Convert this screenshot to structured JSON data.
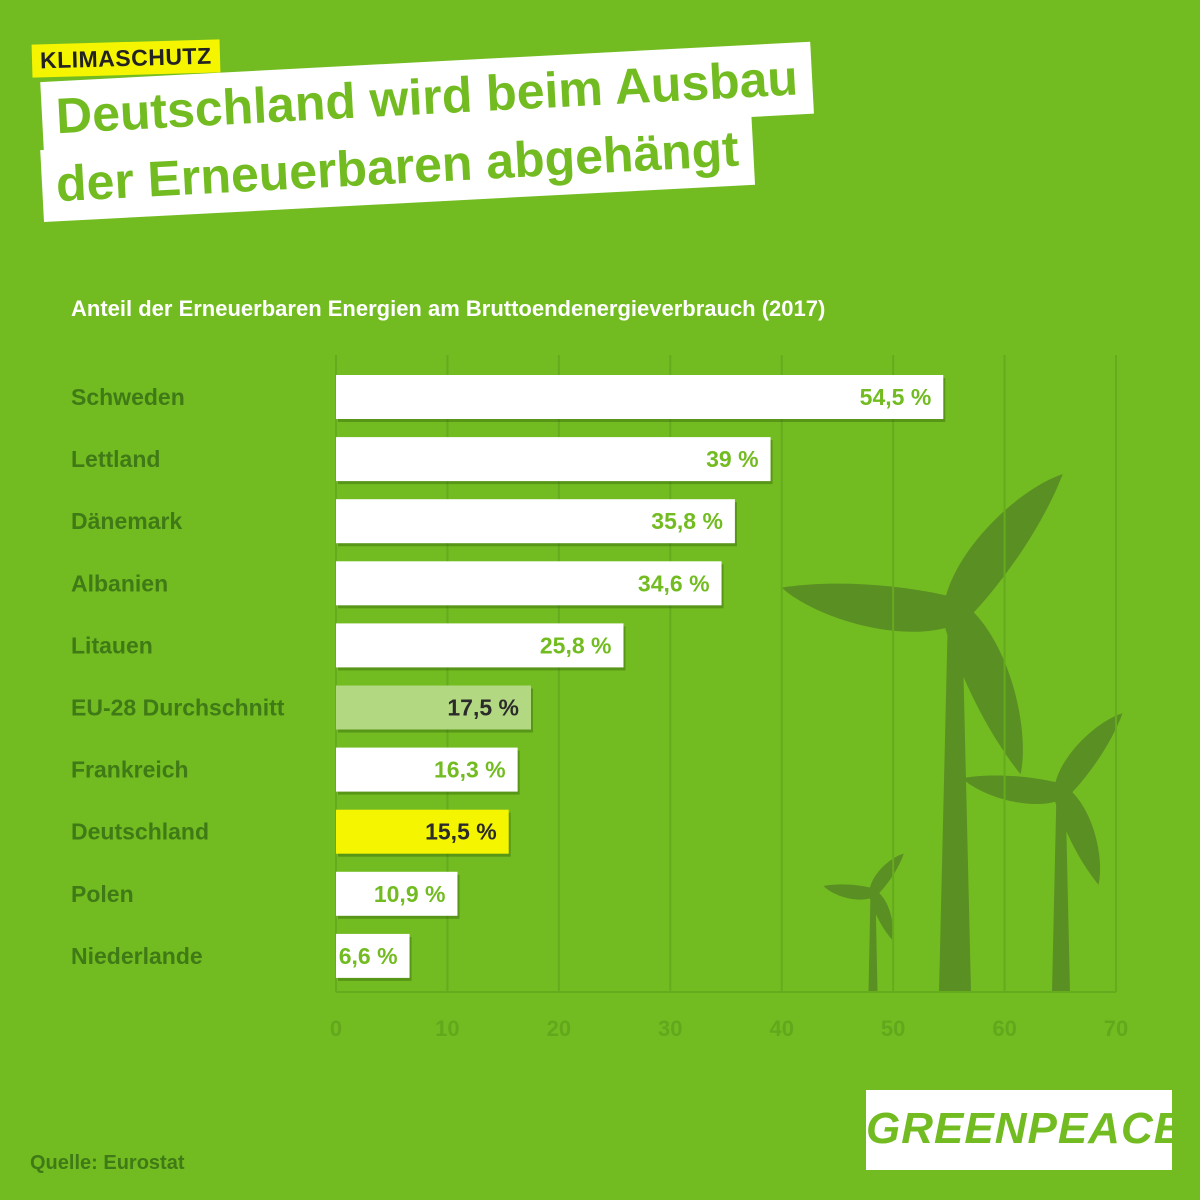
{
  "tag": "KLIMASCHUTZ",
  "title": {
    "line1": "Deutschland wird beim Ausbau",
    "line2": "der Erneuerbaren abgehängt"
  },
  "colors": {
    "background": "#72bc21",
    "bar_default": "#ffffff",
    "bar_eu_average": "#b2d981",
    "bar_germany": "#f5f500",
    "value_green": "#72bc21",
    "value_dark": "#2b2b2b",
    "turbine": "#5a8f24"
  },
  "chart_data": {
    "type": "bar",
    "orientation": "horizontal",
    "title": "Anteil der Erneuerbaren Energien am Bruttoendenergieverbrauch (2017)",
    "categories": [
      "Schweden",
      "Lettland",
      "Dänemark",
      "Albanien",
      "Litauen",
      "EU-28 Durchschnitt",
      "Frankreich",
      "Deutschland",
      "Polen",
      "Niederlande"
    ],
    "values": [
      54.5,
      39,
      35.8,
      34.6,
      25.8,
      17.5,
      16.3,
      15.5,
      10.9,
      6.6
    ],
    "value_labels": [
      "54,5 %",
      "39 %",
      "35,8 %",
      "34,6 %",
      "25,8 %",
      "17,5 %",
      "16,3 %",
      "15,5 %",
      "10,9 %",
      "6,6 %"
    ],
    "highlight": {
      "EU-28 Durchschnitt": "eu_average",
      "Deutschland": "germany"
    },
    "xlim": [
      0,
      70
    ],
    "xticks": [
      0,
      10,
      20,
      30,
      40,
      50,
      60,
      70
    ],
    "grid": "vertical"
  },
  "source": "Quelle: Eurostat",
  "logo": "GREENPEACE"
}
